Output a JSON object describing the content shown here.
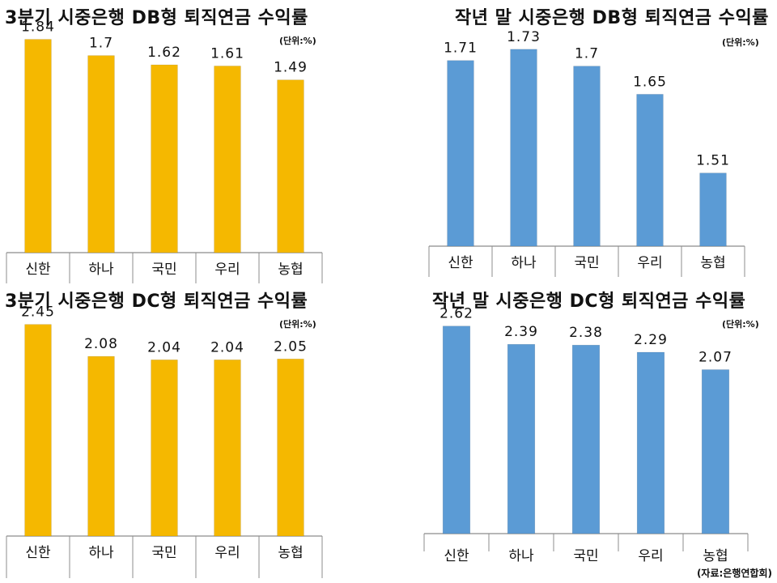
{
  "chart_data": [
    {
      "type": "bar",
      "title": "3분기 시중은행 DB형 퇴직연금 수익률",
      "unit": "(단위:%)",
      "categories": [
        "신한",
        "하나",
        "국민",
        "우리",
        "농협"
      ],
      "values": [
        1.84,
        1.7,
        1.62,
        1.61,
        1.49
      ],
      "value_labels": [
        "1.84",
        "1.7",
        "1.62",
        "1.61",
        "1.49"
      ],
      "ylim": [
        0,
        1.9
      ],
      "color": "#F5B800",
      "xlabel": "",
      "ylabel": ""
    },
    {
      "type": "bar",
      "title": "작년 말 시중은행 DB형 퇴직연금 수익률",
      "unit": "(단위:%)",
      "categories": [
        "신한",
        "하나",
        "국민",
        "우리",
        "농협"
      ],
      "values": [
        1.71,
        1.73,
        1.7,
        1.65,
        1.51
      ],
      "value_labels": [
        "1.71",
        "1.73",
        "1.7",
        "1.65",
        "1.51"
      ],
      "ylim": [
        1.38,
        1.76
      ],
      "color": "#5B9BD5",
      "xlabel": "",
      "ylabel": ""
    },
    {
      "type": "bar",
      "title": "3분기 시중은행 DC형 퇴직연금 수익률",
      "unit": "(단위:%)",
      "categories": [
        "신한",
        "하나",
        "국민",
        "우리",
        "농협"
      ],
      "values": [
        2.45,
        2.08,
        2.04,
        2.04,
        2.05
      ],
      "value_labels": [
        "2.45",
        "2.08",
        "2.04",
        "2.04",
        "2.05"
      ],
      "ylim": [
        0,
        2.55
      ],
      "color": "#F5B800",
      "xlabel": "",
      "ylabel": ""
    },
    {
      "type": "bar",
      "title": "작년 말 시중은행 DC형 퇴직연금 수익률",
      "unit": "(단위:%)",
      "categories": [
        "신한",
        "하나",
        "국민",
        "우리",
        "농협"
      ],
      "values": [
        2.62,
        2.39,
        2.38,
        2.29,
        2.07
      ],
      "value_labels": [
        "2.62",
        "2.39",
        "2.38",
        "2.29",
        "2.07"
      ],
      "ylim": [
        0,
        2.75
      ],
      "color": "#5B9BD5",
      "xlabel": "",
      "ylabel": ""
    }
  ],
  "source": "(자료:은행연합회)"
}
